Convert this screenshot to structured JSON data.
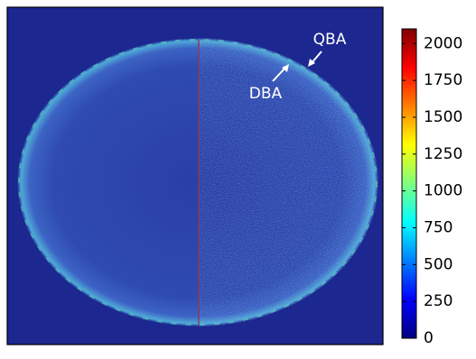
{
  "chart_data": {
    "type": "image",
    "colormap": "jet",
    "clim": [
      0,
      2100
    ],
    "cticks": [
      0,
      250,
      500,
      750,
      1000,
      1250,
      1500,
      1750,
      2000
    ],
    "annotations": [
      "QBA",
      "DBA"
    ]
  }
}
